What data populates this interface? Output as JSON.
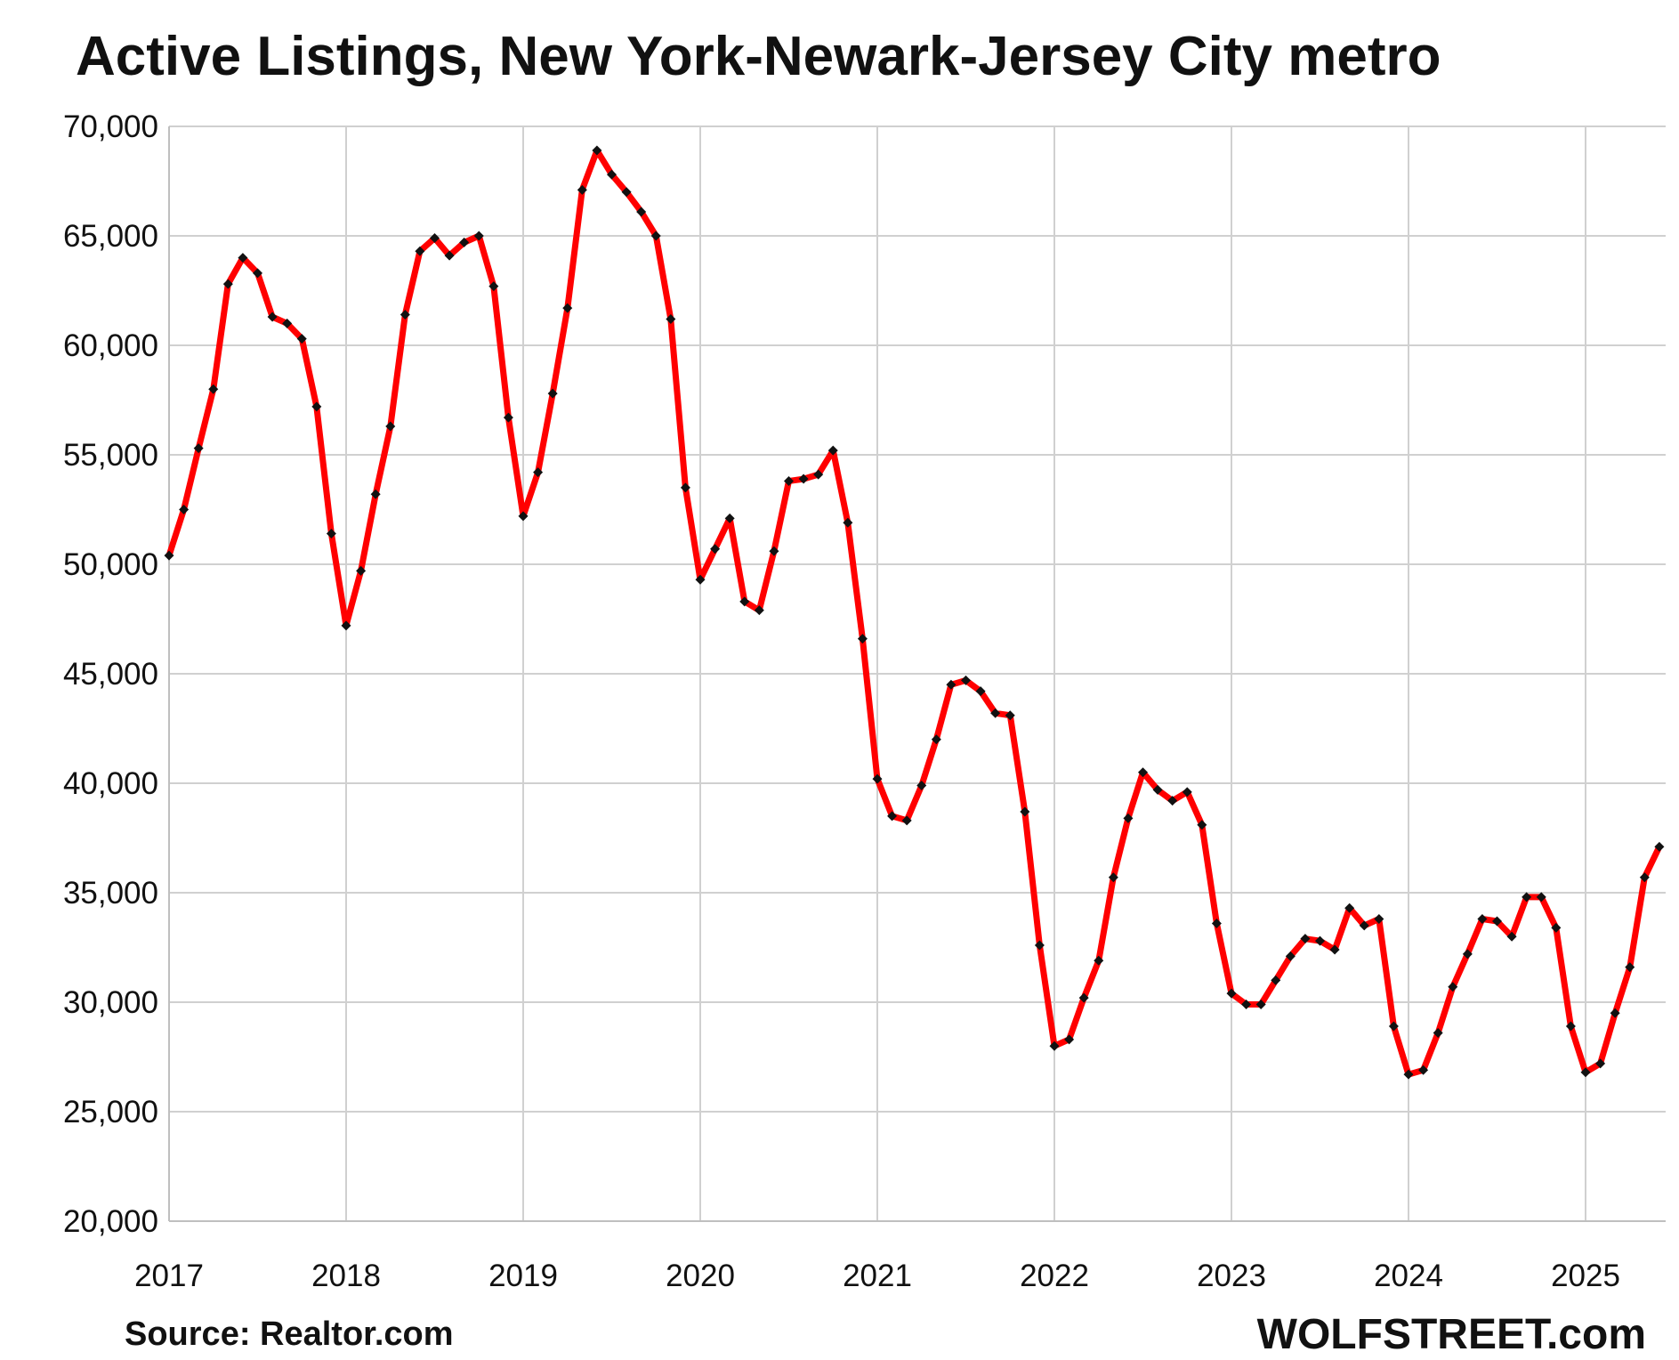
{
  "chart_data": {
    "type": "line",
    "title": "Active Listings, New York-Newark-Jersey City metro",
    "xlabel": "",
    "ylabel": "",
    "ylim": [
      20000,
      70000
    ],
    "xlim": [
      "2017-01",
      "2025-06"
    ],
    "yticks": [
      "20,000",
      "25,000",
      "30,000",
      "35,000",
      "40,000",
      "45,000",
      "50,000",
      "55,000",
      "60,000",
      "65,000",
      "70,000"
    ],
    "xticks": [
      "2017",
      "2018",
      "2019",
      "2020",
      "2021",
      "2022",
      "2023",
      "2024",
      "2025"
    ],
    "grid": true,
    "legend": "none",
    "series": [
      {
        "color": "#ff0000",
        "marker_color": "#111111",
        "start": "2017-01",
        "frequency": "monthly",
        "values": [
          50400,
          52500,
          55300,
          58000,
          62800,
          64000,
          63300,
          61300,
          61000,
          60300,
          57200,
          51400,
          47200,
          49700,
          53200,
          56300,
          61400,
          64300,
          64900,
          64100,
          64700,
          65000,
          62700,
          56700,
          52200,
          54200,
          57800,
          61700,
          67100,
          68900,
          67800,
          67000,
          66100,
          65000,
          61200,
          53500,
          49300,
          50700,
          52100,
          48300,
          47900,
          50600,
          53800,
          53900,
          54100,
          55200,
          51900,
          46600,
          40200,
          38500,
          38300,
          39900,
          42000,
          44500,
          44700,
          44200,
          43200,
          43100,
          38700,
          32600,
          28000,
          28300,
          30200,
          31900,
          35700,
          38400,
          40500,
          39700,
          39200,
          39600,
          38100,
          33600,
          30400,
          29900,
          29900,
          31000,
          32100,
          32900,
          32800,
          32400,
          34300,
          33500,
          33800,
          28900,
          26700,
          26900,
          28600,
          30700,
          32200,
          33800,
          33700,
          33000,
          34800,
          34800,
          33400,
          28900,
          26800,
          27200,
          29500,
          31600,
          35700,
          37100
        ]
      }
    ]
  },
  "footer": {
    "source": "Source: Realtor.com",
    "brand": "WOLFSTREET.com"
  }
}
